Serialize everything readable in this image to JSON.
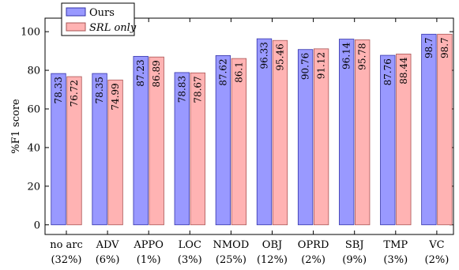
{
  "chart_data": {
    "type": "bar",
    "ylabel": "%F1 score",
    "ylim": [
      -5,
      107
    ],
    "yticks": [
      0,
      20,
      40,
      60,
      80,
      100
    ],
    "grid": false,
    "legend_position": "top-left",
    "categories": [
      "no arc",
      "ADV",
      "APPO",
      "LOC",
      "NMOD",
      "OBJ",
      "OPRD",
      "SBJ",
      "TMP",
      "VC"
    ],
    "category_shares": [
      "(32%)",
      "(6%)",
      "(1%)",
      "(3%)",
      "(25%)",
      "(12%)",
      "(2%)",
      "(9%)",
      "(3%)",
      "(2%)"
    ],
    "series": [
      {
        "name": "Ours",
        "name_style": "normal",
        "color": "#9999ff",
        "border": "#3333aa",
        "values": [
          78.33,
          78.35,
          87.23,
          78.83,
          87.62,
          96.33,
          90.76,
          96.14,
          87.76,
          98.7
        ]
      },
      {
        "name": "SRL only",
        "name_style": "italic",
        "color": "#ffb3b3",
        "border": "#aa5555",
        "values": [
          76.72,
          74.99,
          86.89,
          78.67,
          86.1,
          95.46,
          91.12,
          95.78,
          88.44,
          98.7
        ]
      }
    ]
  }
}
